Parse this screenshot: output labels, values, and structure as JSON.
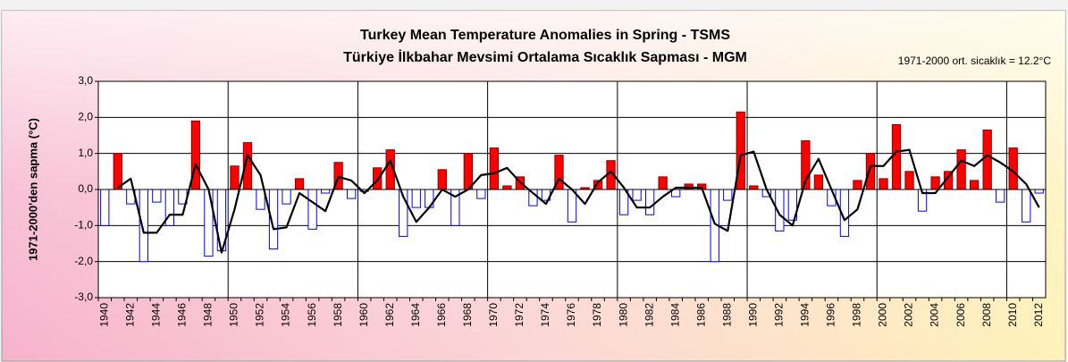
{
  "chart_data": {
    "type": "bar",
    "title": "Turkey Mean Temperature Anomalies in Spring - TSMS",
    "subtitle": "Türkiye  İlkbahar Mevsimi Ortalama Sıcaklık Sapması - MGM",
    "annotation": "1971-2000 ort. sicaklık = 12.2°C",
    "ylabel": "1971-2000'den sapma (°C)",
    "categories": [
      "1940",
      null,
      "1942",
      null,
      "1944",
      null,
      "1946",
      null,
      "1948",
      null,
      "1950",
      null,
      "1952",
      null,
      "1954",
      null,
      "1956",
      null,
      "1958",
      null,
      "1960",
      null,
      "1962",
      null,
      "1964",
      null,
      "1966",
      null,
      "1968",
      null,
      "1970",
      null,
      "1972",
      null,
      "1974",
      null,
      "1976",
      null,
      "1978",
      null,
      "1980",
      null,
      "1982",
      null,
      "1984",
      null,
      "1986",
      null,
      "1988",
      null,
      "1990",
      null,
      "1992",
      null,
      "1994",
      null,
      "1996",
      null,
      "1998",
      null,
      "2000",
      null,
      "2002",
      null,
      "2004",
      null,
      "2006",
      null,
      "2008",
      null,
      "2010",
      null,
      "2012"
    ],
    "series": [
      {
        "type": "bar",
        "color": "#ff0000",
        "negative_color": "#0000ff",
        "values": [
          -1.0,
          1.0,
          -0.4,
          -2.0,
          -0.35,
          -1.0,
          -0.4,
          1.9,
          -1.85,
          -1.7,
          0.65,
          1.3,
          -0.55,
          -1.65,
          -0.4,
          0.3,
          -1.1,
          -0.1,
          0.75,
          -0.25,
          -0.05,
          0.6,
          1.1,
          -1.3,
          -0.5,
          -0.5,
          0.55,
          -1.0,
          1.0,
          -0.25,
          1.15,
          0.1,
          0.35,
          -0.45,
          -0.3,
          0.95,
          -0.9,
          0.05,
          0.25,
          0.8,
          -0.7,
          -0.3,
          -0.7,
          0.35,
          -0.2,
          0.15,
          0.15,
          -2.0,
          -0.3,
          2.15,
          0.1,
          -0.2,
          -1.15,
          -0.85,
          1.35,
          0.4,
          -0.45,
          -1.3,
          0.25,
          1.0,
          0.3,
          1.8,
          0.5,
          -0.6,
          0.35,
          0.5,
          1.1,
          0.25,
          1.65,
          -0.35,
          1.15,
          -0.9,
          -0.1
        ]
      },
      {
        "type": "line",
        "color": "#000000",
        "values": [
          null,
          0.05,
          0.3,
          -1.2,
          -1.2,
          -0.7,
          -0.7,
          0.7,
          0.0,
          -1.75,
          -0.55,
          0.95,
          0.4,
          -1.1,
          -1.05,
          -0.1,
          -0.35,
          -0.6,
          0.35,
          0.25,
          -0.1,
          0.25,
          0.8,
          -0.2,
          -0.9,
          -0.5,
          0.0,
          -0.2,
          0.0,
          0.4,
          0.45,
          0.6,
          0.2,
          -0.1,
          -0.4,
          0.3,
          0.0,
          -0.4,
          0.2,
          0.5,
          0.05,
          -0.5,
          -0.5,
          -0.2,
          0.05,
          0.05,
          0.05,
          -0.95,
          -1.15,
          0.95,
          1.05,
          0.0,
          -0.7,
          -1.0,
          0.25,
          0.85,
          0.0,
          -0.85,
          -0.55,
          0.65,
          0.65,
          1.05,
          1.1,
          -0.1,
          -0.1,
          0.35,
          0.8,
          0.65,
          0.95,
          0.75,
          0.5,
          0.15,
          -0.5
        ]
      }
    ],
    "ylim": [
      -3,
      3
    ],
    "yticks": [
      {
        "value": -3,
        "label": "-3,0"
      },
      {
        "value": -2,
        "label": "-2,0"
      },
      {
        "value": -1,
        "label": "-1,0"
      },
      {
        "value": 0,
        "label": "0,0"
      },
      {
        "value": 1,
        "label": "1,0"
      },
      {
        "value": 2,
        "label": "2,0"
      },
      {
        "value": 3,
        "label": "3,0"
      }
    ],
    "grid": true
  }
}
